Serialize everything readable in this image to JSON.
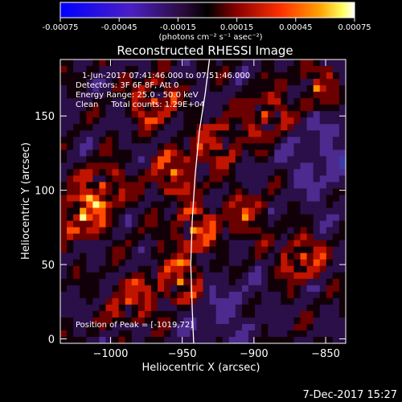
{
  "colorbar": {
    "tick_labels": [
      "-0.00075",
      "-0.00045",
      "-0.00015",
      "0.00015",
      "0.00045",
      "0.00075"
    ],
    "unit_label": "(photons cm⁻² s⁻¹ asec⁻²)",
    "range": [
      -0.00075,
      0.00075
    ]
  },
  "chart_data": {
    "type": "heatmap",
    "title": "Reconstructed RHESSI Image",
    "xlabel": "Heliocentric X (arcsec)",
    "ylabel": "Heliocentric Y (arcsec)",
    "xlim": [
      -1035,
      -836
    ],
    "ylim": [
      -3,
      188
    ],
    "x_ticks": [
      -1000,
      -950,
      -900,
      -850
    ],
    "x_tick_labels": [
      "−1000",
      "−950",
      "−900",
      "−850"
    ],
    "y_ticks": [
      0,
      50,
      100,
      150
    ],
    "y_tick_labels": [
      "0",
      "50",
      "100",
      "150"
    ],
    "limb_curve": [
      [
        -942,
        -3
      ],
      [
        -943,
        20
      ],
      [
        -944,
        50
      ],
      [
        -943,
        80
      ],
      [
        -941,
        110
      ],
      [
        -938,
        140
      ],
      [
        -934,
        165
      ],
      [
        -931,
        188
      ]
    ],
    "annotations": [
      "1-Jun-2017 07:41:46.000 to 07:51:46.000",
      "Detectors: 3F 6F 8F, Att 0",
      "Energy Range: 25.0 - 50.0 keV",
      "Clean     Total counts: 1.29E+04"
    ],
    "peak_label": "Position of Peak = [-1019,72]"
  },
  "footer": {
    "timestamp": "7-Dec-2017 15:27"
  }
}
